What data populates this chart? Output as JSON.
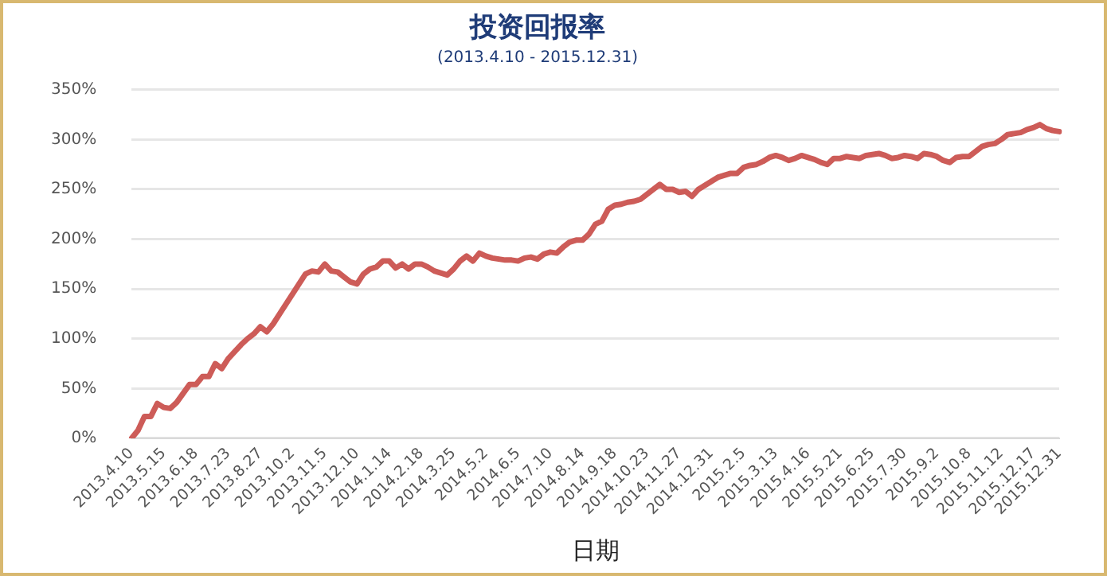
{
  "chart_data": {
    "type": "line",
    "title": "投资回报率",
    "subtitle": "(2013.4.10 - 2015.12.31)",
    "xlabel": "日期",
    "categories": [
      "2013.4.10",
      null,
      null,
      null,
      null,
      "2013.5.15",
      null,
      null,
      null,
      null,
      "2013.6.18",
      null,
      null,
      null,
      null,
      "2013.7.23",
      null,
      null,
      null,
      null,
      "2013.8.27",
      null,
      null,
      null,
      null,
      "2013.10.2",
      null,
      null,
      null,
      null,
      "2013.11.5",
      null,
      null,
      null,
      null,
      "2013.12.10",
      null,
      null,
      null,
      null,
      "2014.1.14",
      null,
      null,
      null,
      null,
      "2014.2.18",
      null,
      null,
      null,
      null,
      "2014.3.25",
      null,
      null,
      null,
      null,
      "2014.5.2",
      null,
      null,
      null,
      null,
      "2014.6.5",
      null,
      null,
      null,
      null,
      "2014.7.10",
      null,
      null,
      null,
      null,
      "2014.8.14",
      null,
      null,
      null,
      null,
      "2014.9.18",
      null,
      null,
      null,
      null,
      "2014.10.23",
      null,
      null,
      null,
      null,
      "2014.11.27",
      null,
      null,
      null,
      null,
      "2014.12.31",
      null,
      null,
      null,
      null,
      "2015.2.5",
      null,
      null,
      null,
      null,
      "2015.3.13",
      null,
      null,
      null,
      null,
      "2015.4.16",
      null,
      null,
      null,
      null,
      "2015.5.21",
      null,
      null,
      null,
      null,
      "2015.6.25",
      null,
      null,
      null,
      null,
      "2015.7.30",
      null,
      null,
      null,
      null,
      "2015.9.2",
      null,
      null,
      null,
      null,
      "2015.10.8",
      null,
      null,
      null,
      null,
      "2015.11.12",
      null,
      null,
      null,
      null,
      "2015.12.17",
      null,
      null,
      null,
      "2015.12.31"
    ],
    "series": [
      {
        "color": "#cd5c58",
        "values": [
          0,
          8,
          22,
          22,
          35,
          31,
          30,
          36,
          45,
          54,
          54,
          62,
          62,
          75,
          70,
          80,
          87,
          94,
          100,
          105,
          112,
          107,
          115,
          125,
          135,
          145,
          155,
          165,
          168,
          167,
          175,
          168,
          167,
          162,
          157,
          155,
          165,
          170,
          172,
          178,
          178,
          171,
          175,
          170,
          175,
          175,
          172,
          168,
          166,
          164,
          170,
          178,
          183,
          178,
          186,
          183,
          181,
          180,
          179,
          179,
          178,
          181,
          182,
          180,
          185,
          187,
          186,
          192,
          197,
          199,
          199,
          205,
          215,
          218,
          230,
          234,
          235,
          237,
          238,
          240,
          245,
          250,
          255,
          250,
          250,
          247,
          248,
          243,
          250,
          254,
          258,
          262,
          264,
          266,
          266,
          272,
          274,
          275,
          278,
          282,
          284,
          282,
          279,
          281,
          284,
          282,
          280,
          277,
          275,
          281,
          281,
          283,
          282,
          281,
          284,
          285,
          286,
          284,
          281,
          282,
          284,
          283,
          281,
          286,
          285,
          283,
          279,
          277,
          282,
          283,
          283,
          288,
          293,
          295,
          296,
          300,
          305,
          306,
          307,
          310,
          312,
          315,
          311,
          309,
          308
        ]
      }
    ],
    "ylim": [
      0,
      350
    ],
    "yticks": [
      {
        "value": 0,
        "label": "0%"
      },
      {
        "value": 50,
        "label": "50%"
      },
      {
        "value": 100,
        "label": "100%"
      },
      {
        "value": 150,
        "label": "150%"
      },
      {
        "value": 200,
        "label": "200%"
      },
      {
        "value": 250,
        "label": "250%"
      },
      {
        "value": 300,
        "label": "300%"
      },
      {
        "value": 350,
        "label": "350%"
      }
    ],
    "grid": "y",
    "legend": false,
    "marker": "none",
    "line_style": "solid"
  }
}
